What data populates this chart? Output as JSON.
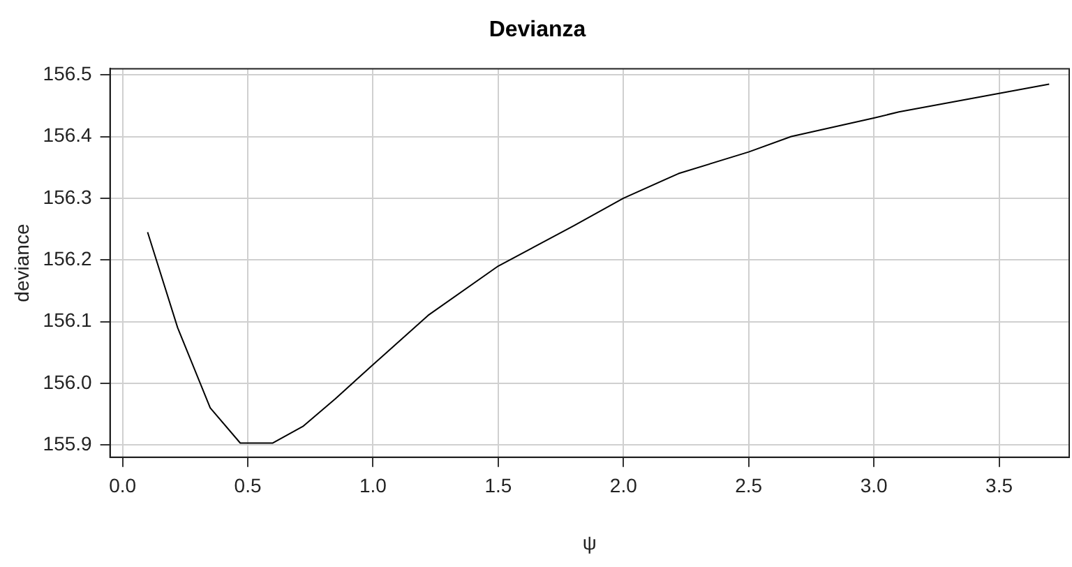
{
  "chart_data": {
    "type": "line",
    "title": "Devianza",
    "xlabel": "ψ",
    "ylabel": "deviance",
    "x": [
      0.1,
      0.22,
      0.35,
      0.47,
      0.6,
      0.72,
      0.85,
      1.0,
      1.22,
      1.5,
      1.8,
      2.0,
      2.22,
      2.5,
      2.67,
      3.0,
      3.1,
      3.5,
      3.7
    ],
    "series": [
      {
        "color": "#000000",
        "values": [
          156.245,
          156.09,
          155.96,
          155.903,
          155.903,
          155.93,
          155.975,
          156.03,
          156.11,
          156.19,
          156.255,
          156.3,
          156.34,
          156.375,
          156.4,
          156.43,
          156.44,
          156.47,
          156.485
        ]
      }
    ],
    "xlim": [
      -0.05,
      3.78
    ],
    "xticks": [
      {
        "value": 0,
        "label": "0.0"
      },
      0.5,
      {
        "value": 1,
        "label": "1.0"
      },
      1.5,
      {
        "value": 2,
        "label": "2.0"
      },
      2.5,
      {
        "value": 3,
        "label": "3.0"
      },
      3.5
    ],
    "ylim": [
      155.88,
      156.51
    ],
    "yticks": [
      155.9,
      {
        "value": 156,
        "label": "156.0"
      },
      156.1,
      156.2,
      156.3,
      156.4,
      156.5
    ],
    "grid": true,
    "legend": false,
    "marker": "none",
    "line_style": "solid"
  }
}
